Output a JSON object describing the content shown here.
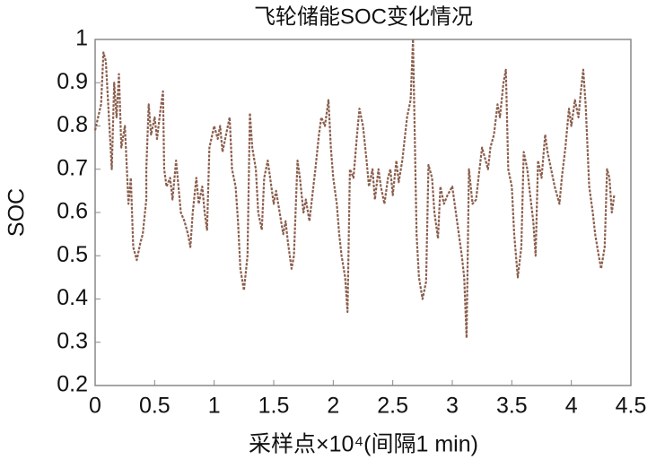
{
  "chart_data": {
    "type": "line",
    "title": "飞轮储能SOC变化情况",
    "xlabel": "采样点×10⁴(间隔1 min)",
    "ylabel": "SOC",
    "xlim": [
      0,
      4.5
    ],
    "xticks": [
      0,
      0.5,
      1,
      1.5,
      2,
      2.5,
      3,
      3.5,
      4,
      4.5
    ],
    "ylim": [
      0.2,
      1
    ],
    "yticks": [
      0.2,
      0.3,
      0.4,
      0.5,
      0.6,
      0.7,
      0.8,
      0.9,
      1
    ],
    "grid": false,
    "series": [
      {
        "name": "SOC",
        "color": "#8a5f4e",
        "x": [
          0,
          0.05,
          0.07,
          0.09,
          0.12,
          0.14,
          0.16,
          0.18,
          0.2,
          0.22,
          0.25,
          0.27,
          0.28,
          0.3,
          0.32,
          0.35,
          0.38,
          0.4,
          0.43,
          0.43,
          0.45,
          0.47,
          0.5,
          0.52,
          0.55,
          0.57,
          0.58,
          0.6,
          0.63,
          0.65,
          0.68,
          0.7,
          0.72,
          0.75,
          0.78,
          0.8,
          0.82,
          0.85,
          0.87,
          0.9,
          0.92,
          0.94,
          0.96,
          1.0,
          1.03,
          1.05,
          1.07,
          1.1,
          1.13,
          1.15,
          1.18,
          1.2,
          1.22,
          1.25,
          1.28,
          1.3,
          1.32,
          1.35,
          1.37,
          1.4,
          1.42,
          1.45,
          1.47,
          1.5,
          1.52,
          1.55,
          1.58,
          1.6,
          1.62,
          1.65,
          1.67,
          1.7,
          1.72,
          1.75,
          1.77,
          1.8,
          1.85,
          1.88,
          1.9,
          1.93,
          1.96,
          1.98,
          2.0,
          2.03,
          2.05,
          2.07,
          2.1,
          2.12,
          2.14,
          2.17,
          2.2,
          2.22,
          2.25,
          2.28,
          2.3,
          2.33,
          2.35,
          2.38,
          2.4,
          2.43,
          2.46,
          2.48,
          2.5,
          2.53,
          2.55,
          2.58,
          2.62,
          2.65,
          2.67,
          2.7,
          2.72,
          2.75,
          2.78,
          2.8,
          2.83,
          2.85,
          2.88,
          2.9,
          2.93,
          2.96,
          3.0,
          3.02,
          3.05,
          3.08,
          3.1,
          3.12,
          3.14,
          3.17,
          3.2,
          3.22,
          3.25,
          3.28,
          3.3,
          3.32,
          3.35,
          3.38,
          3.4,
          3.43,
          3.45,
          3.47,
          3.5,
          3.52,
          3.55,
          3.58,
          3.6,
          3.63,
          3.65,
          3.68,
          3.7,
          3.72,
          3.75,
          3.78,
          3.8,
          3.83,
          3.86,
          3.9,
          3.92,
          3.95,
          3.98,
          4.0,
          4.03,
          4.06,
          4.08,
          4.1,
          4.12,
          4.15,
          4.18,
          4.2,
          4.23,
          4.25,
          4.28,
          4.3,
          4.32,
          4.34,
          4.36
        ],
        "values": [
          0.79,
          0.85,
          0.97,
          0.95,
          0.8,
          0.7,
          0.9,
          0.82,
          0.92,
          0.75,
          0.8,
          0.68,
          0.62,
          0.68,
          0.52,
          0.49,
          0.53,
          0.55,
          0.63,
          0.7,
          0.85,
          0.78,
          0.82,
          0.77,
          0.84,
          0.88,
          0.7,
          0.66,
          0.68,
          0.63,
          0.72,
          0.66,
          0.6,
          0.58,
          0.55,
          0.52,
          0.6,
          0.68,
          0.62,
          0.66,
          0.6,
          0.56,
          0.75,
          0.8,
          0.77,
          0.8,
          0.74,
          0.78,
          0.82,
          0.7,
          0.66,
          0.58,
          0.47,
          0.42,
          0.5,
          0.83,
          0.75,
          0.7,
          0.6,
          0.56,
          0.68,
          0.72,
          0.68,
          0.62,
          0.65,
          0.6,
          0.55,
          0.58,
          0.53,
          0.47,
          0.5,
          0.72,
          0.68,
          0.6,
          0.63,
          0.58,
          0.7,
          0.78,
          0.82,
          0.8,
          0.86,
          0.75,
          0.68,
          0.62,
          0.55,
          0.5,
          0.45,
          0.37,
          0.7,
          0.68,
          0.78,
          0.84,
          0.8,
          0.72,
          0.66,
          0.7,
          0.63,
          0.7,
          0.66,
          0.62,
          0.68,
          0.7,
          0.64,
          0.72,
          0.67,
          0.72,
          0.82,
          0.86,
          1.0,
          0.55,
          0.45,
          0.4,
          0.44,
          0.71,
          0.68,
          0.6,
          0.54,
          0.66,
          0.62,
          0.64,
          0.66,
          0.62,
          0.56,
          0.5,
          0.45,
          0.31,
          0.7,
          0.62,
          0.63,
          0.68,
          0.75,
          0.72,
          0.7,
          0.75,
          0.78,
          0.85,
          0.82,
          0.9,
          0.93,
          0.7,
          0.66,
          0.55,
          0.45,
          0.52,
          0.74,
          0.7,
          0.65,
          0.58,
          0.5,
          0.72,
          0.68,
          0.78,
          0.74,
          0.7,
          0.66,
          0.62,
          0.68,
          0.75,
          0.84,
          0.8,
          0.86,
          0.82,
          0.88,
          0.93,
          0.85,
          0.66,
          0.6,
          0.55,
          0.5,
          0.47,
          0.52,
          0.7,
          0.68,
          0.6,
          0.64
        ]
      }
    ]
  }
}
